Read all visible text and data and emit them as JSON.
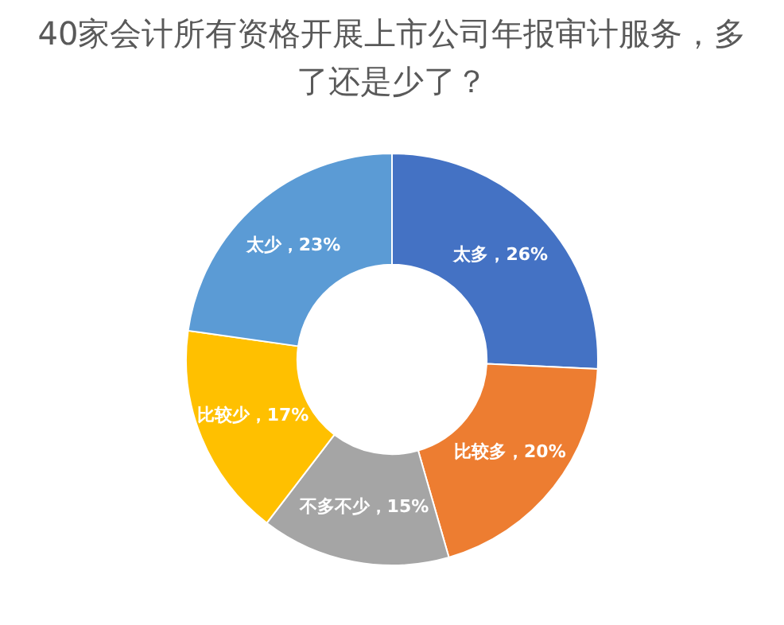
{
  "chart_data": {
    "type": "donut",
    "title": "40家会计所有资格开展上市公司年报审计服务，多了还是少了？",
    "categories": [
      "太多",
      "比较多",
      "不多不少",
      "比较少",
      "太少"
    ],
    "values": [
      26,
      20,
      15,
      17,
      23
    ],
    "value_labels": [
      "26%",
      "20%",
      "15%",
      "17%",
      "23%"
    ],
    "colors": [
      "#4472c4",
      "#ed7d31",
      "#a5a5a5",
      "#ffc000",
      "#5b9bd5"
    ],
    "legend": false
  }
}
